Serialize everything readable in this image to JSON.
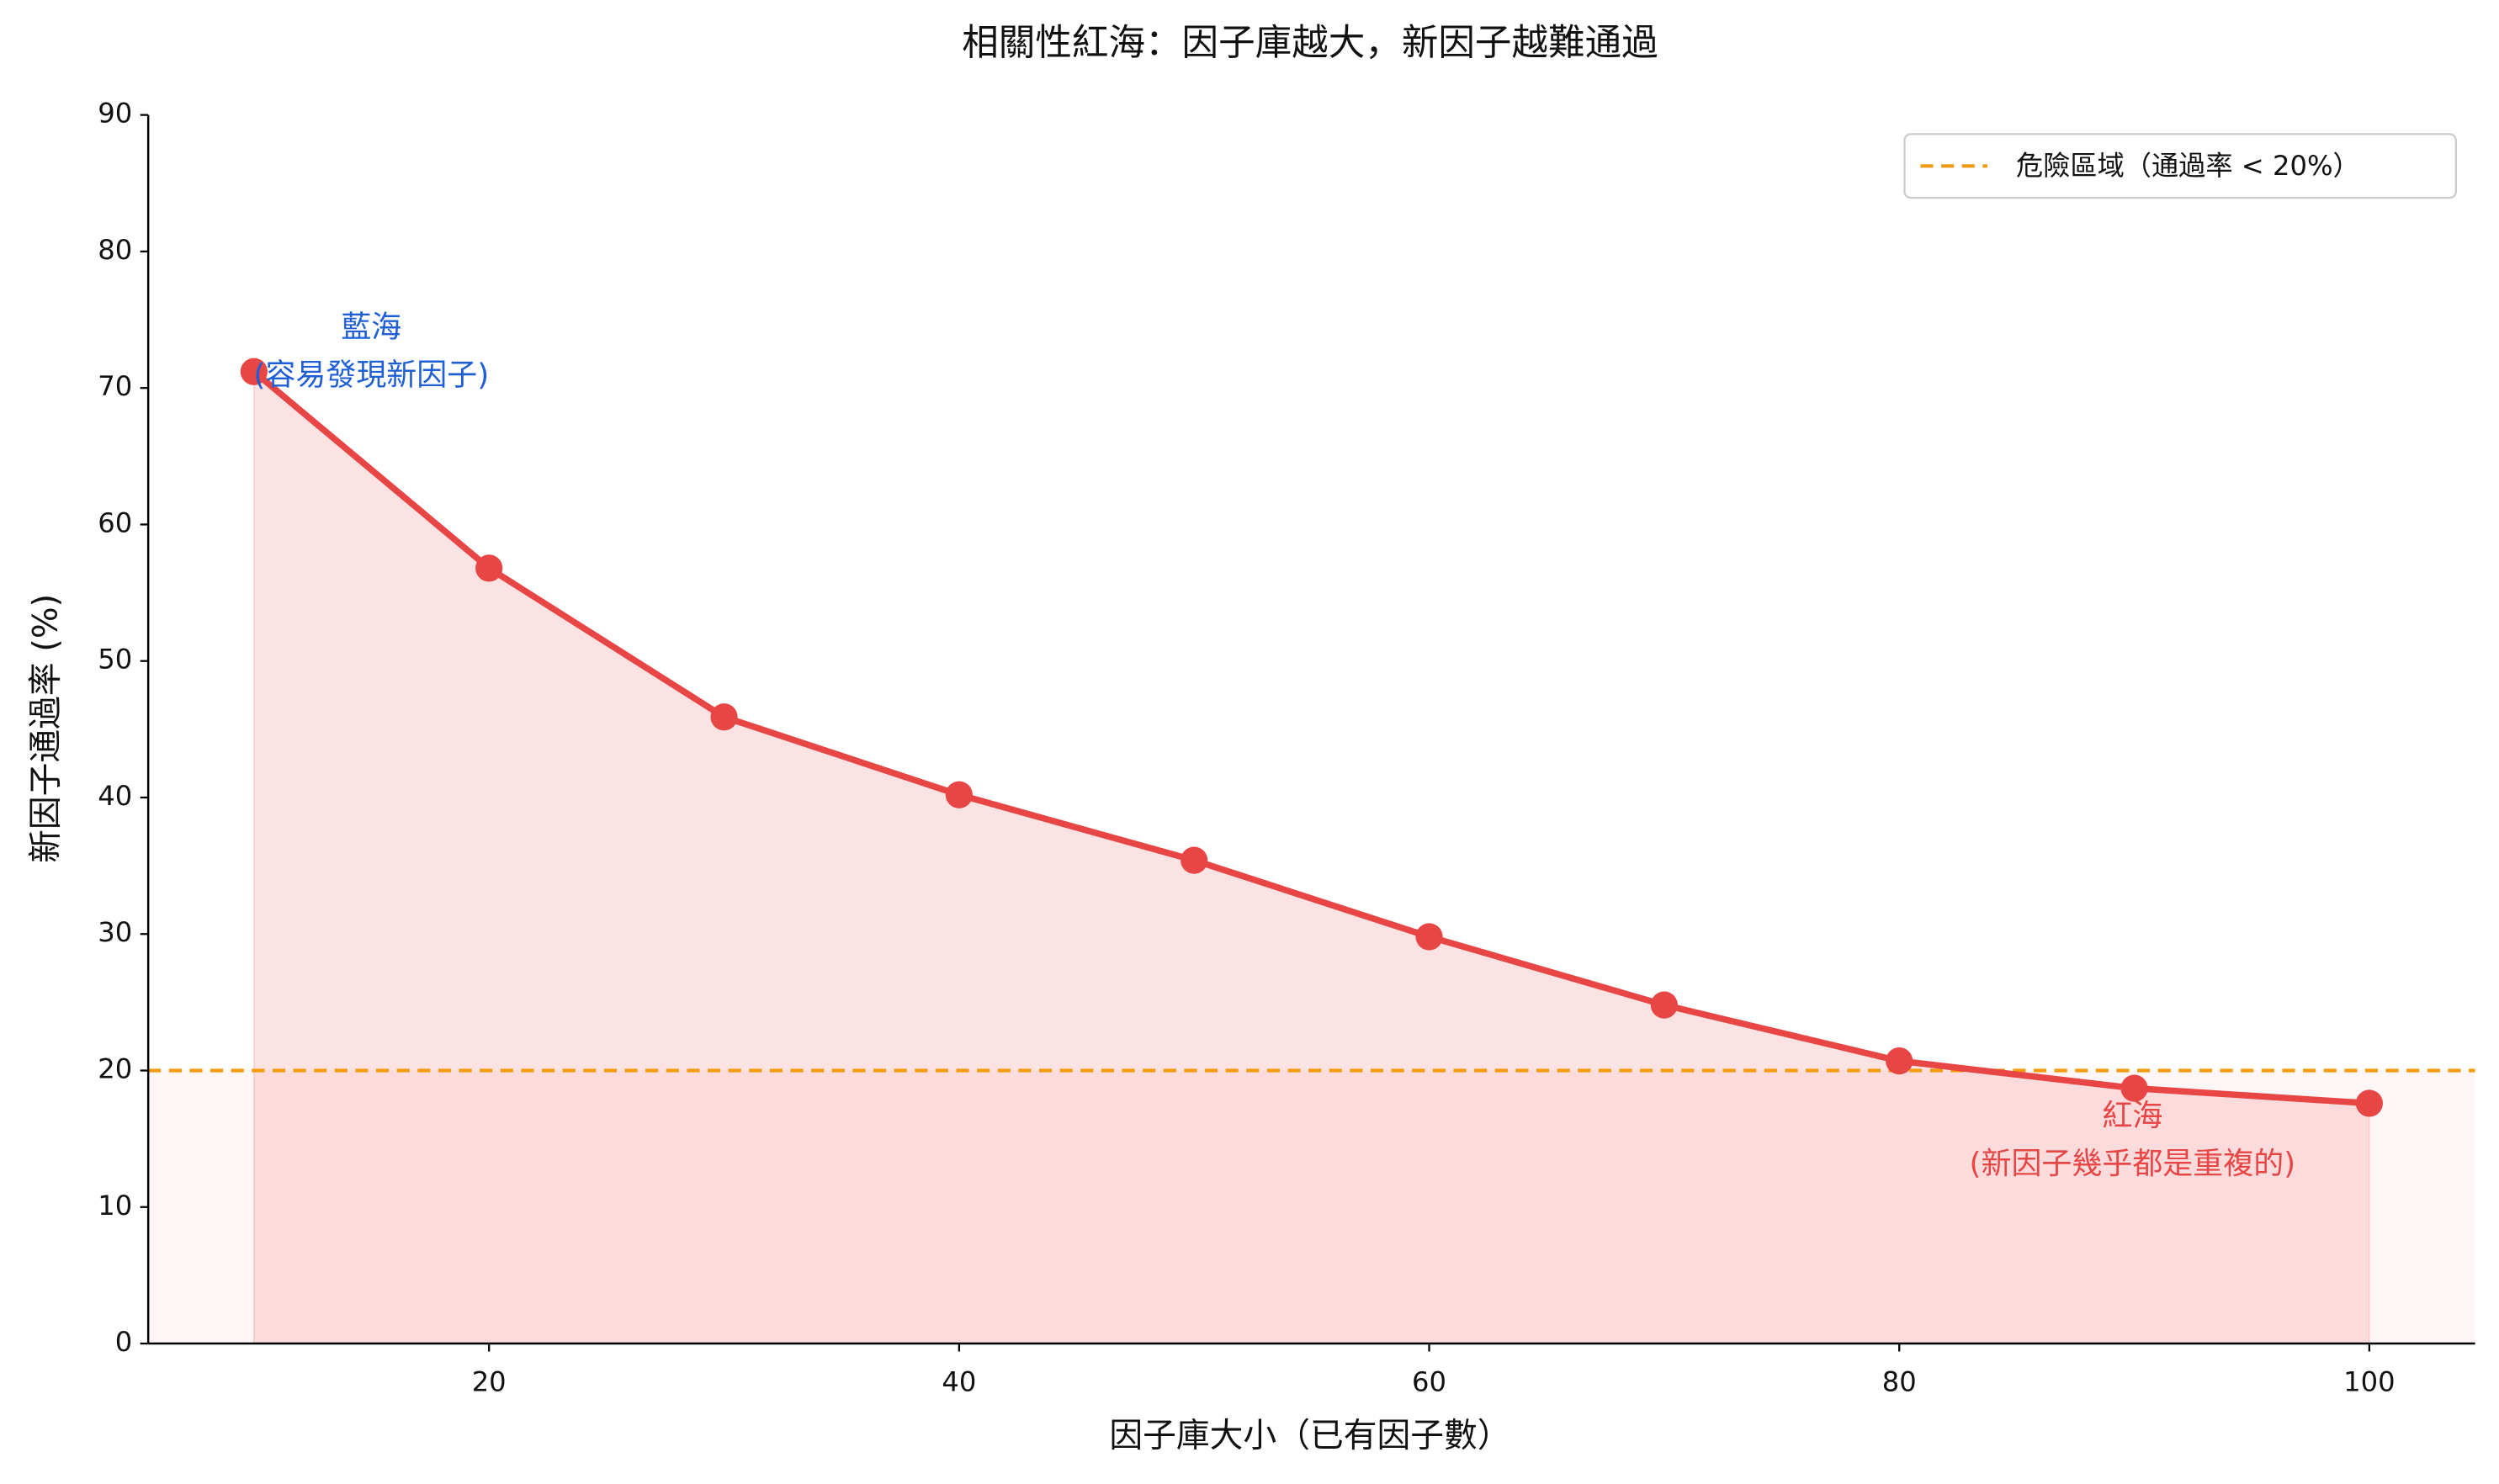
{
  "chart_data": {
    "type": "line",
    "title": "相關性紅海：因子庫越大，新因子越難通過",
    "xlabel": "因子庫大小（已有因子數）",
    "ylabel": "新因子通過率 (%)",
    "x": [
      10,
      20,
      30,
      40,
      50,
      60,
      70,
      80,
      90,
      100
    ],
    "series": [
      {
        "color": "#e84545",
        "values": [
          71.2,
          56.8,
          45.9,
          40.2,
          35.4,
          29.8,
          24.8,
          20.7,
          18.7,
          17.6
        ]
      }
    ],
    "threshold": {
      "value": 20,
      "label": "危險區域（通過率 < 20%）",
      "color": "#f39c12"
    },
    "annotations": [
      {
        "lines": [
          "藍海",
          "(容易發現新因子)"
        ],
        "color": "#1f5fd6"
      },
      {
        "lines": [
          "紅海",
          "(新因子幾乎都是重複的)"
        ],
        "color": "#e84545"
      }
    ],
    "xlim": [
      5.5,
      104.5
    ],
    "ylim": [
      0,
      90
    ],
    "xticks": [
      20,
      40,
      60,
      80,
      100
    ],
    "yticks": [
      0,
      10,
      20,
      30,
      40,
      50,
      60,
      70,
      80,
      90
    ],
    "legend": "upper right"
  }
}
